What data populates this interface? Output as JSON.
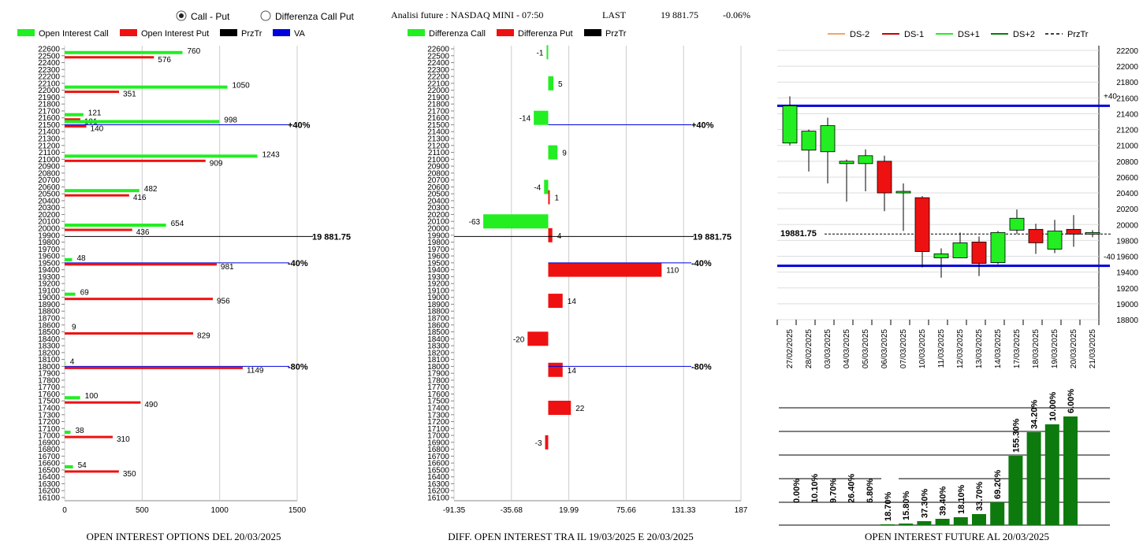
{
  "header": {
    "radio_call_put": "Call - Put",
    "radio_diff": "Differenza Call Put",
    "selected": "call_put",
    "title": "Analisi future : NASDAQ MINI - 07:50",
    "last_label": "LAST",
    "last_value": "19 881.75",
    "change": "-0.06%"
  },
  "colors": {
    "green": "#22ee22",
    "red": "#ee1111",
    "black": "#000000",
    "blue": "#0000dd",
    "dark_green": "#0d7a0d"
  },
  "chart_data": [
    {
      "type": "bar",
      "orientation": "horizontal",
      "legend": [
        "Open Interest Call",
        "Open Interest Put",
        "PrzTr",
        "VA"
      ],
      "caption": "OPEN INTEREST OPTIONS DEL 20/03/2025",
      "y_ticks": [
        "22600",
        "22500",
        "22400",
        "22300",
        "22200",
        "22100",
        "22000",
        "21900",
        "21800",
        "21700",
        "21600",
        "21500",
        "21400",
        "21300",
        "21200",
        "21100",
        "21000",
        "20900",
        "20800",
        "20700",
        "20600",
        "20500",
        "20400",
        "20300",
        "20200",
        "20100",
        "20000",
        "19900",
        "19800",
        "19700",
        "19600",
        "19500",
        "19400",
        "19300",
        "19200",
        "19100",
        "19000",
        "18900",
        "18800",
        "18700",
        "18600",
        "18500",
        "18400",
        "18300",
        "18200",
        "18100",
        "18000",
        "17900",
        "17800",
        "17700",
        "17600",
        "17500",
        "17400",
        "17300",
        "17200",
        "17100",
        "17000",
        "16900",
        "16800",
        "16700",
        "16600",
        "16500",
        "16400",
        "16300",
        "16200",
        "16100"
      ],
      "x_ticks": [
        "0",
        "500",
        "1000",
        "1500"
      ],
      "xlim": [
        0,
        1500
      ],
      "ylim": [
        16100,
        22600
      ],
      "strikes": [
        22500,
        22000,
        21600,
        21500,
        21000,
        20500,
        20000,
        19500,
        19000,
        18500,
        18000,
        17500,
        17000,
        16500
      ],
      "call": [
        760,
        1050,
        121,
        998,
        1243,
        482,
        654,
        48,
        69,
        0,
        4,
        100,
        38,
        54
      ],
      "put": [
        576,
        351,
        101,
        140,
        909,
        416,
        436,
        981,
        956,
        829,
        1149,
        490,
        310,
        350
      ],
      "call_labels": [
        "760",
        "1050",
        "121",
        "998",
        "1243",
        "482",
        "654",
        "48",
        "69",
        "",
        "4",
        "100",
        "38",
        "54"
      ],
      "put_labels": [
        "576",
        "351",
        "101",
        "140",
        "909",
        "416",
        "436",
        "981",
        "956",
        "829",
        "1149",
        "490",
        "310",
        "350"
      ],
      "extra_label": {
        "text": "9",
        "strike": 18500
      },
      "lines": [
        {
          "label": "+40%",
          "level": 21500,
          "color": "blue"
        },
        {
          "label": "19 881.75",
          "level": 19881.75,
          "color": "black"
        },
        {
          "label": "-40%",
          "level": 19500,
          "color": "blue"
        },
        {
          "label": "-80%",
          "level": 18000,
          "color": "blue"
        }
      ]
    },
    {
      "type": "bar",
      "orientation": "horizontal",
      "legend": [
        "Differenza Call",
        "Differenza Put",
        "PrzTr"
      ],
      "caption": "DIFF. OPEN INTEREST TRA IL 19/03/2025 E 20/03/2025",
      "y_ticks": [
        "22600",
        "22500",
        "22400",
        "22300",
        "22200",
        "22100",
        "22000",
        "21900",
        "21800",
        "21700",
        "21600",
        "21500",
        "21400",
        "21300",
        "21200",
        "21100",
        "21000",
        "20900",
        "20800",
        "20700",
        "20600",
        "20500",
        "20400",
        "20300",
        "20200",
        "20100",
        "20000",
        "19900",
        "19800",
        "19700",
        "19600",
        "19500",
        "19400",
        "19300",
        "19200",
        "19100",
        "19000",
        "18900",
        "18800",
        "18700",
        "18600",
        "18500",
        "18400",
        "18300",
        "18200",
        "18100",
        "18000",
        "17900",
        "17800",
        "17700",
        "17600",
        "17500",
        "17400",
        "17300",
        "17200",
        "17100",
        "17000",
        "16900",
        "16800",
        "16700",
        "16600",
        "16500",
        "16400",
        "16300",
        "16200",
        "16100"
      ],
      "x_ticks": [
        "-91.35",
        "-35.68",
        "19.99",
        "75.66",
        "131.33",
        "187"
      ],
      "xlim": [
        -91.35,
        187
      ],
      "ylim": [
        16100,
        22600
      ],
      "bars": [
        {
          "y": 22550,
          "value": -1,
          "color": "green"
        },
        {
          "y": 22100,
          "value": 5,
          "color": "green"
        },
        {
          "y": 21600,
          "value": -14,
          "color": "green"
        },
        {
          "y": 21100,
          "value": 9,
          "color": "green"
        },
        {
          "y": 20600,
          "value": -4,
          "color": "green"
        },
        {
          "y": 20450,
          "value": 1,
          "color": "red"
        },
        {
          "y": 20100,
          "value": -63,
          "color": "green"
        },
        {
          "y": 19900,
          "value": 4,
          "color": "red"
        },
        {
          "y": 19400,
          "value": 110,
          "color": "red"
        },
        {
          "y": 18950,
          "value": 14,
          "color": "red"
        },
        {
          "y": 18400,
          "value": -20,
          "color": "red"
        },
        {
          "y": 17950,
          "value": 14,
          "color": "red"
        },
        {
          "y": 17400,
          "value": 22,
          "color": "red"
        },
        {
          "y": 16900,
          "value": -3,
          "color": "red"
        }
      ],
      "bar_labels": [
        "-1",
        "5",
        "-14",
        "9",
        "-4",
        "1",
        "-63",
        "4",
        "110",
        "14",
        "-20",
        "14",
        "22",
        "-3"
      ],
      "lines": [
        {
          "label": "+40%",
          "level": 21500,
          "color": "blue"
        },
        {
          "label": "19 881.75",
          "level": 19881.75,
          "color": "black"
        },
        {
          "label": "-40%",
          "level": 19500,
          "color": "blue"
        },
        {
          "label": "-80%",
          "level": 18000,
          "color": "blue"
        }
      ]
    },
    {
      "type": "candlestick",
      "legend": [
        "DS-2",
        "DS-1",
        "DS+1",
        "DS+2",
        "PrzTr"
      ],
      "dates": [
        "27/02/2025",
        "28/02/2025",
        "03/03/2025",
        "04/03/2025",
        "05/03/2025",
        "06/03/2025",
        "07/03/2025",
        "10/03/2025",
        "11/03/2025",
        "12/03/2025",
        "13/03/2025",
        "14/03/2025",
        "17/03/2025",
        "18/03/2025",
        "19/03/2025",
        "20/03/2025",
        "21/03/2025"
      ],
      "open": [
        21030,
        20940,
        20920,
        20770,
        20770,
        20800,
        20420,
        20340,
        19580,
        19580,
        19780,
        19520,
        19930,
        19940,
        19690,
        19940,
        19890
      ],
      "close": [
        21500,
        21180,
        21250,
        20800,
        20870,
        20400,
        20420,
        19660,
        19630,
        19770,
        19510,
        19900,
        20080,
        19770,
        19920,
        19880,
        19900
      ],
      "high": [
        21620,
        21200,
        21350,
        20820,
        20950,
        20870,
        20520,
        20360,
        19700,
        19900,
        19850,
        19920,
        20190,
        20010,
        20060,
        20120,
        19930
      ],
      "low": [
        21000,
        20670,
        20520,
        20290,
        20420,
        20170,
        19920,
        19460,
        19330,
        19580,
        19350,
        19500,
        19880,
        19630,
        19640,
        19720,
        19840
      ],
      "ylim": [
        18800,
        22200
      ],
      "y_ticks": [
        "22200",
        "22000",
        "21800",
        "21600",
        "21400",
        "21200",
        "21000",
        "20800",
        "20600",
        "20400",
        "20200",
        "20000",
        "19800",
        "19600",
        "19400",
        "19200",
        "19000",
        "18800"
      ],
      "price_label": "19881.75",
      "price": 19881.75,
      "upper_line": {
        "level": 21500,
        "label": "+40"
      },
      "lower_line": {
        "level": 19480,
        "label": "-40"
      }
    },
    {
      "type": "bar",
      "caption": "OPEN INTEREST FUTURE AL 20/03/2025",
      "categories": [
        "27/02/2025",
        "28/02/2025",
        "03/03/2025",
        "04/03/2025",
        "05/03/2025",
        "06/03/2025",
        "07/03/2025",
        "10/03/2025",
        "11/03/2025",
        "12/03/2025",
        "13/03/2025",
        "14/03/2025",
        "17/03/2025",
        "18/03/2025",
        "19/03/2025",
        "20/03/2025"
      ],
      "values": [
        0.0,
        10.1,
        9.7,
        26.4,
        6.8,
        18.7,
        15.8,
        37.3,
        39.4,
        18.1,
        33.7,
        69.2,
        155.3,
        34.2,
        10.0,
        6.0
      ],
      "labels": [
        "0.00%",
        "10.10%",
        "9.70%",
        "26.40%",
        "6.80%",
        "18.70%",
        "15.80%",
        "37.30%",
        "39.40%",
        "18.10%",
        "33.70%",
        "69.20%",
        "155.30%",
        "34.20%",
        "10.00%",
        "6.00%"
      ],
      "heights": [
        0,
        0,
        0,
        0,
        0,
        1,
        2,
        5,
        8,
        10,
        14,
        29,
        88,
        118,
        128,
        138
      ]
    }
  ]
}
